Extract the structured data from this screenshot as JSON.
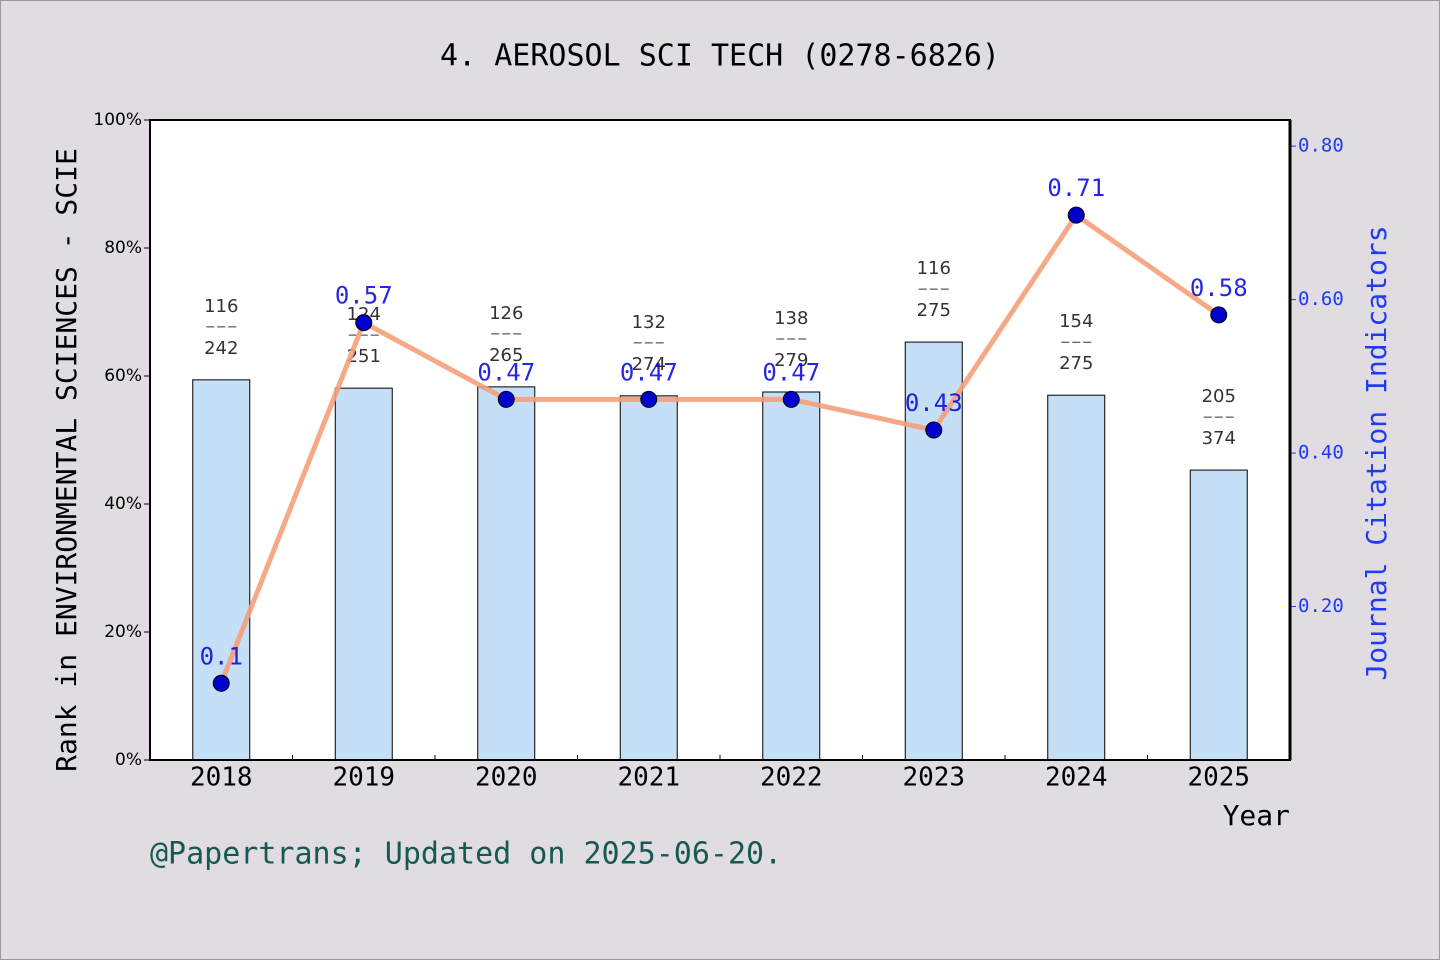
{
  "chart_data": {
    "type": "bar_line",
    "title": "4. AEROSOL SCI TECH (0278-6826)",
    "ylabel": "Rank in ENVIRONMENTAL SCIENCES - SCIE",
    "y2label": "Journal Citation Indicators",
    "xlabel": "Year",
    "footer": "@Papertrans; Updated on 2025-06-20.",
    "categories": [
      "2018",
      "2019",
      "2020",
      "2021",
      "2022",
      "2023",
      "2024",
      "2025"
    ],
    "series": [
      {
        "name": "Rank",
        "type": "bar",
        "color": "#c5dff6",
        "values": [
          59.4,
          58.1,
          58.3,
          56.9,
          57.5,
          65.3,
          57.0,
          45.3
        ]
      },
      {
        "name": "JCI",
        "type": "line",
        "axis": "y2",
        "color": "#f4a07a",
        "marker_color": "#0000cc",
        "values": [
          0.1,
          0.57,
          0.47,
          0.47,
          0.47,
          0.43,
          0.71,
          0.58
        ]
      }
    ],
    "rank_labels": [
      {
        "rank": 116,
        "total": 242
      },
      {
        "rank": 124,
        "total": 251
      },
      {
        "rank": 126,
        "total": 265
      },
      {
        "rank": 132,
        "total": 274
      },
      {
        "rank": 138,
        "total": 279
      },
      {
        "rank": 116,
        "total": 275
      },
      {
        "rank": 154,
        "total": 275
      },
      {
        "rank": 205,
        "total": 374
      }
    ],
    "ylim": [
      0,
      100
    ],
    "yticks": [
      {
        "value": 0,
        "label": "0%"
      },
      {
        "value": 20,
        "label": "20%"
      },
      {
        "value": 40,
        "label": "40%"
      },
      {
        "value": 60,
        "label": "60%"
      },
      {
        "value": 80,
        "label": "80%"
      },
      {
        "value": 100,
        "label": "100%"
      }
    ],
    "y2lim": [
      0,
      0.834
    ],
    "y2ticks": [
      {
        "value": 0.2,
        "label": "0.20"
      },
      {
        "value": 0.4,
        "label": "0.40"
      },
      {
        "value": 0.6,
        "label": "0.60"
      },
      {
        "value": 0.8,
        "label": "0.80"
      }
    ]
  }
}
